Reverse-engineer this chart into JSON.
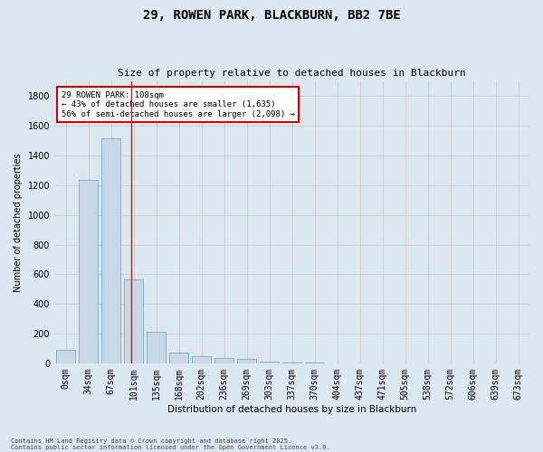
{
  "title_line1": "29, ROWEN PARK, BLACKBURN, BB2 7BE",
  "title_line2": "Size of property relative to detached houses in Blackburn",
  "xlabel": "Distribution of detached houses by size in Blackburn",
  "ylabel": "Number of detached properties",
  "bar_labels": [
    "0sqm",
    "34sqm",
    "67sqm",
    "101sqm",
    "135sqm",
    "168sqm",
    "202sqm",
    "236sqm",
    "269sqm",
    "303sqm",
    "337sqm",
    "370sqm",
    "404sqm",
    "437sqm",
    "471sqm",
    "505sqm",
    "538sqm",
    "572sqm",
    "606sqm",
    "639sqm",
    "673sqm"
  ],
  "bar_values": [
    90,
    1235,
    1515,
    565,
    210,
    70,
    48,
    37,
    28,
    10,
    5,
    3,
    2,
    1,
    1,
    0,
    0,
    0,
    0,
    0,
    0
  ],
  "bar_color": "#c8d8e8",
  "bar_edge_color": "#7aaabb",
  "grid_color": "#cccccc",
  "background_color": "#dce8f0",
  "annotation_text": "29 ROWEN PARK: 108sqm\n← 43% of detached houses are smaller (1,635)\n56% of semi-detached houses are larger (2,098) →",
  "vline_x_index": 2.88,
  "annotation_box_color": "#ffffff",
  "annotation_box_edge_color": "#cc0000",
  "ylim": [
    0,
    1900
  ],
  "footnote1": "Contains HM Land Registry data © Crown copyright and database right 2025.",
  "footnote2": "Contains public sector information licensed under the Open Government Licence v3.0."
}
